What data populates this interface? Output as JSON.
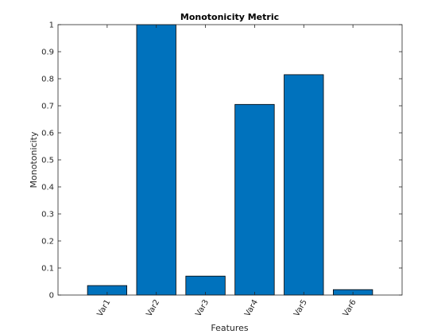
{
  "chart_data": {
    "type": "bar",
    "title": "Monotonicity Metric",
    "xlabel": "Features",
    "ylabel": "Monotonicity",
    "categories": [
      "Var1",
      "Var2",
      "Var3",
      "Var4",
      "Var5",
      "Var6"
    ],
    "values": [
      0.035,
      1.0,
      0.07,
      0.705,
      0.815,
      0.02
    ],
    "ylim": [
      0,
      1
    ],
    "yticks": [
      "0",
      "0.1",
      "0.2",
      "0.3",
      "0.4",
      "0.5",
      "0.6",
      "0.7",
      "0.8",
      "0.9",
      "1"
    ],
    "grid": false,
    "bar_color": "#0072BD",
    "bar_edge_color": "#000000"
  }
}
